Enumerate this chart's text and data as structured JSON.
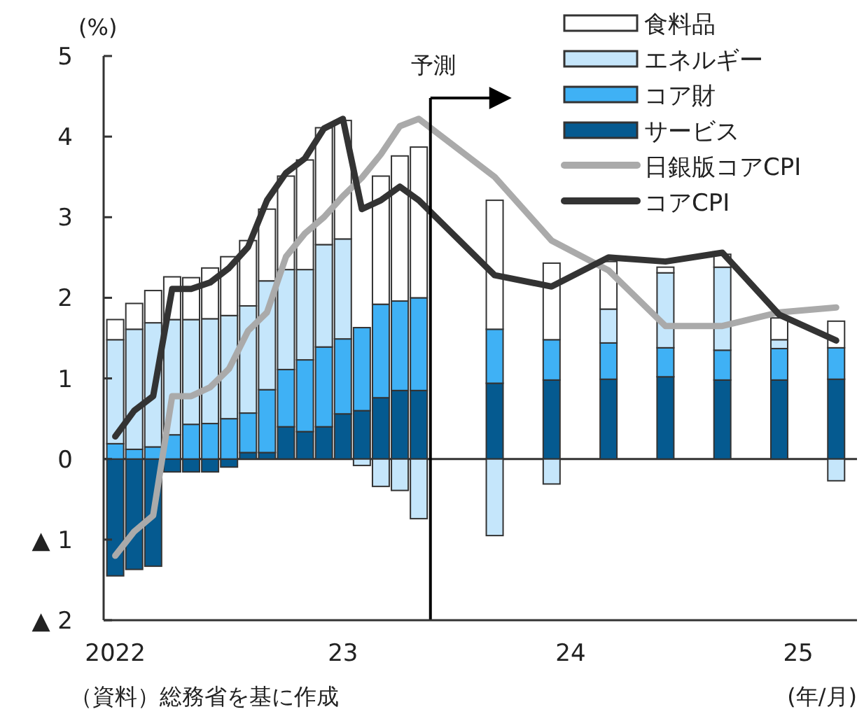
{
  "chart_data": {
    "type": "bar",
    "stacked": true,
    "ylabel": "(%)",
    "xlabel": "(年/月)",
    "annotations": [
      "（資料）総務省を基に作成"
    ],
    "x": [
      "2022-01",
      "2022-02",
      "2022-03",
      "2022-04",
      "2022-05",
      "2022-06",
      "2022-07",
      "2022-08",
      "2022-09",
      "2022-10",
      "2022-11",
      "2022-12",
      "2023-01",
      "2023-02",
      "2023-03",
      "2023-04",
      "2023-05",
      "2023-09",
      "2023-12",
      "2024-03",
      "2024-06",
      "2024-09",
      "2024-12",
      "2025-03"
    ],
    "series": [
      {
        "name": "サービス",
        "color": "#055a90",
        "values": [
          -1.45,
          -1.37,
          -1.33,
          -0.16,
          -0.16,
          -0.16,
          -0.1,
          0.08,
          0.08,
          0.4,
          0.34,
          0.4,
          0.56,
          0.6,
          0.76,
          0.85,
          0.85,
          0.94,
          0.98,
          0.99,
          1.02,
          0.98,
          0.98,
          0.99
        ]
      },
      {
        "name": "コア財",
        "color": "#3fb1f5",
        "values": [
          0.19,
          0.12,
          0.15,
          0.3,
          0.43,
          0.44,
          0.5,
          0.49,
          0.78,
          0.71,
          0.89,
          0.99,
          0.93,
          1.03,
          1.16,
          1.11,
          1.15,
          0.67,
          0.5,
          0.45,
          0.36,
          0.37,
          0.39,
          0.39
        ]
      },
      {
        "name": "エネルギー",
        "color": "#c5e6fb",
        "values": [
          1.29,
          1.49,
          1.54,
          1.43,
          1.3,
          1.3,
          1.28,
          1.33,
          1.35,
          1.24,
          1.12,
          1.27,
          1.24,
          -0.08,
          -0.34,
          -0.39,
          -0.74,
          -0.95,
          -0.31,
          0.42,
          0.93,
          1.03,
          0.11,
          -0.27
        ]
      },
      {
        "name": "食料品",
        "color": "#ffffff",
        "values": [
          0.25,
          0.32,
          0.4,
          0.53,
          0.52,
          0.63,
          0.73,
          0.81,
          0.89,
          1.16,
          1.36,
          1.45,
          1.47,
          null,
          1.59,
          1.8,
          1.87,
          1.6,
          0.95,
          0.59,
          0.07,
          0.16,
          0.27,
          0.33
        ]
      },
      {
        "name": "日銀版コアCPI",
        "type": "line",
        "color": "#aaaaaa",
        "values": [
          -1.2,
          -0.9,
          -0.7,
          0.78,
          0.78,
          0.89,
          1.12,
          1.59,
          1.82,
          2.51,
          2.8,
          3.0,
          3.26,
          3.49,
          3.78,
          4.13,
          4.22,
          3.5,
          2.71,
          2.34,
          1.65,
          1.65,
          1.82,
          1.88
        ]
      },
      {
        "name": "コアCPI",
        "type": "line",
        "color": "#333333",
        "values": [
          0.28,
          0.6,
          0.78,
          2.11,
          2.11,
          2.19,
          2.37,
          2.63,
          3.21,
          3.55,
          3.73,
          4.1,
          4.22,
          3.1,
          3.21,
          3.38,
          3.21,
          2.28,
          2.14,
          2.5,
          2.45,
          2.56,
          1.79,
          1.47
        ]
      }
    ],
    "ref_lines": [
      {
        "axis": "x",
        "value": "2023-05-20",
        "label": "予測",
        "color": "#000000"
      },
      {
        "axis": "y",
        "value": 0,
        "color": "#333333"
      }
    ],
    "xlim": [
      "2021-12-13",
      "2025-04-04"
    ],
    "xticks": [
      {
        "value": "2022-01",
        "label": "2022"
      },
      {
        "value": "2023-01",
        "label": "23"
      },
      {
        "value": "2024-01",
        "label": "24"
      },
      {
        "value": "2025-01",
        "label": "25"
      }
    ],
    "ylim": [
      -2,
      5
    ],
    "yticks": [
      {
        "value": -2,
        "label": "▲ 2"
      },
      {
        "value": -1,
        "label": "▲ 1"
      },
      0,
      1,
      2,
      3,
      4,
      5
    ],
    "legend": "top right"
  }
}
